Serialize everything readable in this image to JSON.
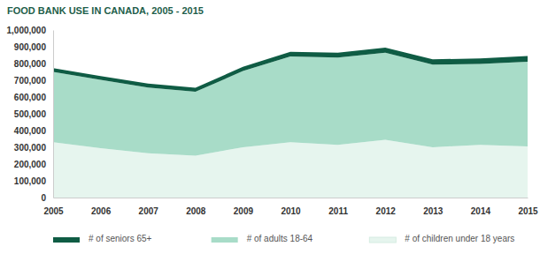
{
  "chart_data": {
    "type": "area",
    "title": "FOOD BANK USE IN CANADA, 2005 - 2015",
    "categories": [
      "2005",
      "2006",
      "2007",
      "2008",
      "2009",
      "2010",
      "2011",
      "2012",
      "2013",
      "2014",
      "2015"
    ],
    "series": [
      {
        "name": "# of seniors 65+",
        "color": "#0f5c44",
        "values": [
          22000,
          23000,
          23000,
          24000,
          25000,
          28000,
          29000,
          30000,
          32000,
          33000,
          35000
        ]
      },
      {
        "name": "# of adults 18-64",
        "color": "#a8dcc8",
        "values": [
          420000,
          407000,
          392000,
          381000,
          455000,
          512000,
          521000,
          520000,
          493000,
          482000,
          505000
        ]
      },
      {
        "name": "# of children under 18 years",
        "color": "#e6f5ee",
        "values": [
          330000,
          295000,
          265000,
          250000,
          300000,
          330000,
          315000,
          345000,
          300000,
          315000,
          305000
        ]
      }
    ],
    "stacked": true,
    "ylim": [
      0,
      1000000
    ],
    "yticks": [
      0,
      {
        "value": 100000,
        "label": "100,000"
      },
      {
        "value": 200000,
        "label": "200,000"
      },
      {
        "value": 300000,
        "label": "300,000"
      },
      {
        "value": 400000,
        "label": "400,000"
      },
      {
        "value": 500000,
        "label": "500,000"
      },
      {
        "value": 600000,
        "label": "600,000"
      },
      {
        "value": 700000,
        "label": "700,000"
      },
      {
        "value": 800000,
        "label": "800,000"
      },
      {
        "value": 900000,
        "label": "900,000"
      },
      {
        "value": 1000000,
        "label": "1,000,000"
      }
    ],
    "grid": false,
    "legend": "bottom"
  }
}
